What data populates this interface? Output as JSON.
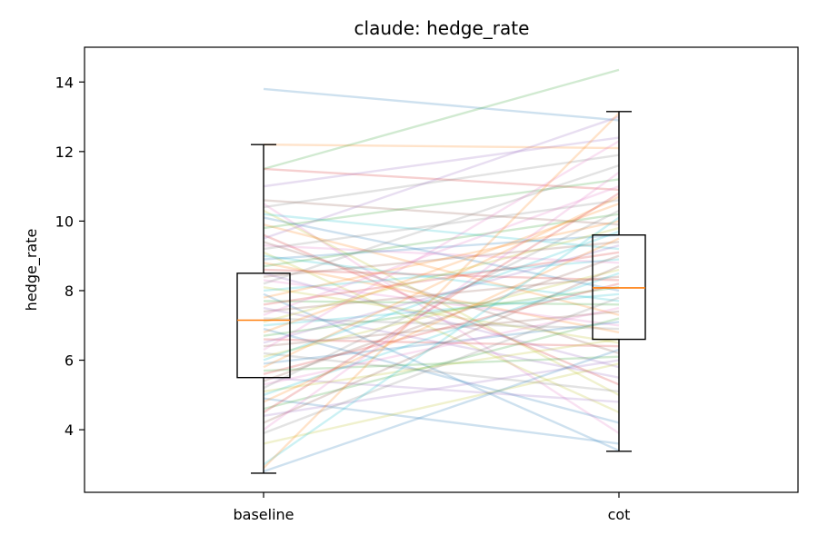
{
  "chart_data": {
    "type": "box-paired-lines",
    "title": "claude: hedge_rate",
    "xlabel": "",
    "ylabel": "hedge_rate",
    "categories": [
      "baseline",
      "cot"
    ],
    "ylim": [
      2.2,
      15.0
    ],
    "yticks": [
      4,
      6,
      8,
      10,
      12,
      14
    ],
    "grid": false,
    "boxes": [
      {
        "name": "baseline",
        "whisker_low": 2.75,
        "q1": 5.5,
        "median": 7.15,
        "q3": 8.5,
        "whisker_high": 12.2
      },
      {
        "name": "cot",
        "whisker_low": 3.38,
        "q1": 6.6,
        "median": 8.08,
        "q3": 9.6,
        "whisker_high": 13.15
      }
    ],
    "pairs": [
      [
        13.8,
        12.9
      ],
      [
        12.2,
        12.1
      ],
      [
        11.5,
        14.35
      ],
      [
        11.5,
        10.9
      ],
      [
        11.0,
        12.4
      ],
      [
        10.6,
        9.9
      ],
      [
        10.5,
        3.9
      ],
      [
        10.4,
        11.9
      ],
      [
        10.3,
        5.0
      ],
      [
        10.2,
        9.2
      ],
      [
        10.1,
        8.0
      ],
      [
        9.9,
        7.3
      ],
      [
        9.8,
        11.2
      ],
      [
        9.6,
        5.3
      ],
      [
        9.5,
        13.0
      ],
      [
        9.4,
        6.2
      ],
      [
        9.3,
        8.8
      ],
      [
        9.2,
        10.6
      ],
      [
        9.1,
        4.5
      ],
      [
        9.0,
        7.7
      ],
      [
        8.9,
        9.6
      ],
      [
        8.8,
        6.8
      ],
      [
        8.7,
        10.2
      ],
      [
        8.6,
        8.3
      ],
      [
        8.5,
        5.8
      ],
      [
        8.4,
        9.4
      ],
      [
        8.3,
        7.0
      ],
      [
        8.2,
        11.6
      ],
      [
        8.1,
        6.5
      ],
      [
        8.0,
        8.9
      ],
      [
        7.9,
        3.4
      ],
      [
        7.8,
        10.0
      ],
      [
        7.7,
        7.6
      ],
      [
        7.6,
        9.1
      ],
      [
        7.5,
        5.5
      ],
      [
        7.4,
        8.4
      ],
      [
        7.3,
        11.0
      ],
      [
        7.2,
        6.9
      ],
      [
        7.1,
        9.8
      ],
      [
        7.0,
        7.9
      ],
      [
        6.9,
        4.2
      ],
      [
        6.8,
        10.5
      ],
      [
        6.7,
        8.1
      ],
      [
        6.6,
        6.4
      ],
      [
        6.5,
        9.3
      ],
      [
        6.4,
        7.4
      ],
      [
        6.3,
        12.3
      ],
      [
        6.2,
        5.1
      ],
      [
        6.1,
        8.6
      ],
      [
        6.0,
        9.7
      ],
      [
        5.9,
        7.1
      ],
      [
        5.8,
        10.7
      ],
      [
        5.7,
        6.1
      ],
      [
        5.6,
        8.2
      ],
      [
        5.5,
        4.8
      ],
      [
        5.4,
        9.0
      ],
      [
        5.3,
        7.5
      ],
      [
        5.2,
        10.3
      ],
      [
        5.1,
        6.6
      ],
      [
        5.0,
        8.5
      ],
      [
        4.9,
        3.6
      ],
      [
        4.8,
        9.5
      ],
      [
        4.6,
        7.2
      ],
      [
        4.5,
        10.8
      ],
      [
        4.4,
        6.0
      ],
      [
        4.2,
        8.7
      ],
      [
        4.0,
        11.4
      ],
      [
        3.9,
        7.8
      ],
      [
        3.6,
        5.9
      ],
      [
        3.0,
        10.1
      ],
      [
        2.8,
        6.3
      ],
      [
        2.9,
        13.1
      ]
    ],
    "line_colors": [
      "#1f77b4",
      "#ff7f0e",
      "#2ca02c",
      "#d62728",
      "#9467bd",
      "#8c564b",
      "#e377c2",
      "#7f7f7f",
      "#bcbd22",
      "#17becf"
    ],
    "median_color": "#ff7f0e"
  }
}
